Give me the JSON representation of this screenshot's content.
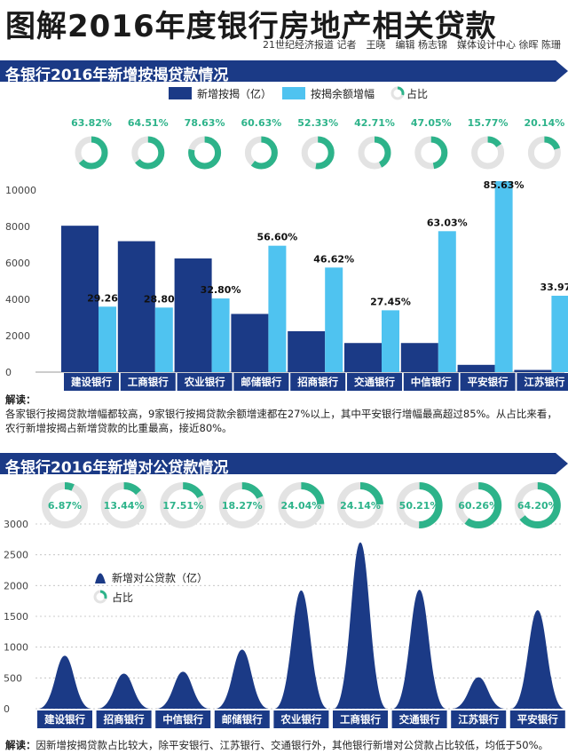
{
  "header": {
    "title": "图解2016年度银行房地产相关贷款",
    "credits": "21世纪经济报道 记者　王晓　编辑 杨志锦　媒体设计中心 徐晖 陈珊"
  },
  "section1": {
    "banner": "各银行2016年新增按揭贷款情况",
    "note_label": "解读：",
    "note_text": "各家银行按揭贷款增幅都较高，9家银行按揭贷款余额增速都在27%以上，其中平安银行增幅最高超过85%。从占比来看，农行新增按揭占新增贷款的比重最高，接近80%。"
  },
  "section2": {
    "banner": "各银行2016年新增对公贷款情况",
    "note_label": "解读：",
    "note_text": "因新增按揭贷款占比较大，除平安银行、江苏银行、交通银行外，其他银行新增对公贷款占比较低，均低于50%。"
  },
  "colors": {
    "navy": "#1b3a86",
    "sky": "#4fc3f0",
    "teal": "#2db38a",
    "ring_bg": "#e3e3e3"
  },
  "chart_data": [
    {
      "type": "bar",
      "categories": [
        "建设银行",
        "工商银行",
        "农业银行",
        "邮储银行",
        "招商银行",
        "交通银行",
        "中信银行",
        "平安银行",
        "江苏银行"
      ],
      "series": [
        {
          "name": "新增按揭（亿）",
          "values": [
            8050,
            7200,
            6250,
            3200,
            2250,
            1600,
            1600,
            400,
            120
          ]
        },
        {
          "name": "按揭余额增幅",
          "values": [
            3600,
            3550,
            4050,
            6950,
            5750,
            3400,
            7750,
            10500,
            4200
          ],
          "labels": [
            "29.26%",
            "28.80%",
            "32.80%",
            "56.60%",
            "46.62%",
            "27.45%",
            "63.03%",
            "85.63%",
            "33.97%"
          ]
        }
      ],
      "ratio_name": "占比",
      "ratios": [
        63.82,
        64.51,
        78.63,
        60.63,
        52.33,
        42.71,
        47.05,
        15.77,
        20.14
      ],
      "ratio_labels": [
        "63.82%",
        "64.51%",
        "78.63%",
        "60.63%",
        "52.33%",
        "42.71%",
        "47.05%",
        "15.77%",
        "20.14%"
      ],
      "yticks": [
        "0",
        "2000",
        "4000",
        "6000",
        "8000",
        "10000"
      ],
      "ylim": [
        0,
        10500
      ],
      "legend": "top"
    },
    {
      "type": "area",
      "categories": [
        "建设银行",
        "招商银行",
        "中信银行",
        "邮储银行",
        "农业银行",
        "工商银行",
        "交通银行",
        "江苏银行",
        "平安银行"
      ],
      "series": [
        {
          "name": "新增对公贷款（亿）",
          "values": [
            860,
            570,
            600,
            960,
            1920,
            2700,
            1930,
            510,
            1600
          ]
        }
      ],
      "ratio_name": "占比",
      "ratios": [
        6.87,
        13.44,
        17.51,
        18.27,
        24.04,
        24.14,
        50.21,
        60.26,
        64.2
      ],
      "ratio_labels": [
        "6.87%",
        "13.44%",
        "17.51%",
        "18.27%",
        "24.04%",
        "24.14%",
        "50.21%",
        "60.26%",
        "64.20%"
      ],
      "yticks": [
        "0",
        "500",
        "1000",
        "1500",
        "2000",
        "2500",
        "3000"
      ],
      "ylim": [
        0,
        3000
      ],
      "legend": "left"
    }
  ]
}
